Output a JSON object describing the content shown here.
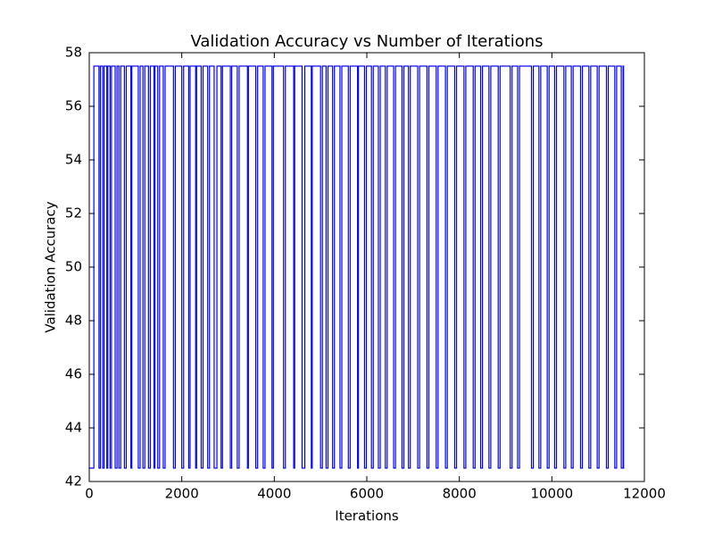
{
  "chart_data": {
    "type": "line",
    "step": "post",
    "title": "Validation Accuracy vs Number of Iterations",
    "x_label": "Iterations",
    "y_label": "Validation Accuracy",
    "x": [
      0,
      100,
      210,
      240,
      290,
      320,
      380,
      400,
      450,
      480,
      560,
      600,
      640,
      680,
      760,
      800,
      900,
      920,
      1060,
      1100,
      1160,
      1200,
      1280,
      1320,
      1400,
      1420,
      1480,
      1520,
      1600,
      1640,
      1820,
      1860,
      2000,
      2040,
      2150,
      2180,
      2300,
      2320,
      2420,
      2460,
      2560,
      2600,
      2700,
      2760,
      2850,
      2880,
      3050,
      3080,
      3200,
      3240,
      3420,
      3440,
      3600,
      3640,
      3760,
      3800,
      3950,
      3980,
      4200,
      4240,
      4420,
      4440,
      4600,
      4660,
      4800,
      4820,
      5000,
      5040,
      5120,
      5160,
      5260,
      5300,
      5420,
      5460,
      5600,
      5640,
      5800,
      5820,
      5950,
      5990,
      6100,
      6140,
      6250,
      6290,
      6400,
      6440,
      6580,
      6620,
      6760,
      6800,
      6900,
      6940,
      7100,
      7140,
      7300,
      7340,
      7500,
      7540,
      7700,
      7740,
      7900,
      7940,
      8100,
      8140,
      8300,
      8340,
      8460,
      8500,
      8640,
      8680,
      8840,
      8880,
      9100,
      9140,
      9260,
      9300,
      9560,
      9600,
      9720,
      9760,
      9900,
      9940,
      10060,
      10100,
      10260,
      10300,
      10420,
      10460,
      10620,
      10660,
      10800,
      10840,
      10980,
      11020,
      11180,
      11220,
      11360,
      11400,
      11500,
      11540,
      11550
    ],
    "series": [
      {
        "name": "Validation Accuracy",
        "color": "#0000ff",
        "values": [
          42.5,
          57.5,
          42.5,
          57.5,
          42.5,
          57.5,
          42.5,
          57.5,
          42.5,
          57.5,
          42.5,
          57.5,
          42.5,
          57.5,
          42.5,
          57.5,
          42.5,
          57.5,
          42.5,
          57.5,
          42.5,
          57.5,
          42.5,
          57.5,
          42.5,
          57.5,
          42.5,
          57.5,
          42.5,
          57.5,
          42.5,
          57.5,
          42.5,
          57.5,
          42.5,
          57.5,
          42.5,
          57.5,
          42.5,
          57.5,
          42.5,
          57.5,
          42.5,
          57.5,
          42.5,
          57.5,
          42.5,
          57.5,
          42.5,
          57.5,
          42.5,
          57.5,
          42.5,
          57.5,
          42.5,
          57.5,
          42.5,
          57.5,
          42.5,
          57.5,
          42.5,
          57.5,
          42.5,
          57.5,
          42.5,
          57.5,
          42.5,
          57.5,
          42.5,
          57.5,
          42.5,
          57.5,
          42.5,
          57.5,
          42.5,
          57.5,
          42.5,
          57.5,
          42.5,
          57.5,
          42.5,
          57.5,
          42.5,
          57.5,
          42.5,
          57.5,
          42.5,
          57.5,
          42.5,
          57.5,
          42.5,
          57.5,
          42.5,
          57.5,
          42.5,
          57.5,
          42.5,
          57.5,
          42.5,
          57.5,
          42.5,
          57.5,
          42.5,
          57.5,
          42.5,
          57.5,
          42.5,
          57.5,
          42.5,
          57.5,
          42.5,
          57.5,
          42.5,
          57.5,
          42.5,
          57.5,
          42.5,
          57.5,
          42.5,
          57.5,
          42.5,
          57.5,
          42.5,
          57.5,
          42.5,
          57.5,
          42.5,
          57.5,
          42.5,
          57.5,
          42.5,
          57.5,
          42.5,
          57.5,
          42.5,
          57.5,
          42.5,
          57.5,
          42.5,
          57.5,
          42.5
        ]
      }
    ],
    "xlim": [
      0,
      12000
    ],
    "xticks": [
      0,
      2000,
      4000,
      6000,
      8000,
      10000,
      12000
    ],
    "ylim": [
      42,
      58
    ],
    "yticks": [
      42,
      44,
      46,
      48,
      50,
      52,
      54,
      56,
      58
    ],
    "grid": false
  }
}
